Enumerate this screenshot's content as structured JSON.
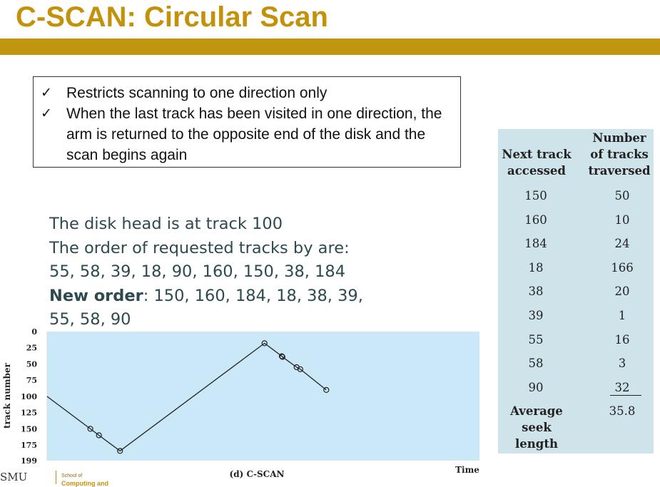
{
  "slide": {
    "title": "C-SCAN: Circular Scan",
    "bullets": [
      {
        "icon": "checkmark-icon",
        "mark": "✓",
        "text": "Restricts scanning to one direction only"
      },
      {
        "icon": "checkmark-icon",
        "mark": "✓",
        "text": "When the last track has been visited in one direction, the arm is returned to the opposite end of the disk and the scan begins again"
      }
    ],
    "description": {
      "line1": "The disk head is at track 100",
      "line2": "The order of requested tracks by are:",
      "line3": "55, 58, 39, 18, 90, 160, 150, 38, 184",
      "new_order_label": "New order",
      "new_order_rest": ": 150, 160, 184, 18, 38, 39,",
      "line5": "55, 58, 90"
    },
    "table": {
      "header_col1": [
        "Next track",
        "accessed"
      ],
      "header_col2": [
        "Number",
        "of tracks",
        "traversed"
      ],
      "rows": [
        [
          "150",
          "50"
        ],
        [
          "160",
          "10"
        ],
        [
          "184",
          "24"
        ],
        [
          "18",
          "166"
        ],
        [
          "38",
          "20"
        ],
        [
          "39",
          "1"
        ],
        [
          "55",
          "16"
        ],
        [
          "58",
          "3"
        ],
        [
          "90",
          "32"
        ]
      ],
      "summary_label": [
        "Average",
        "seek",
        "length"
      ],
      "summary_value": "35.8"
    },
    "footer": {
      "logo": "SMU",
      "school_line1": "School of",
      "school_line2": "Computing and"
    },
    "colors": {
      "title": "#c3910a",
      "title_bar": "#c0950f",
      "table_bg": "#cfe4ea",
      "chart_bg": "#cae8f7",
      "description": "#2c4a4f"
    }
  },
  "chart_data": {
    "type": "line",
    "ylabel": "track number",
    "xlabel": "Time",
    "caption": "(d) C-SCAN",
    "y_ticks": [
      "0",
      "25",
      "50",
      "75",
      "100",
      "125",
      "150",
      "175",
      "199"
    ],
    "y_tick_values": [
      0,
      25,
      50,
      75,
      100,
      125,
      150,
      175,
      199
    ],
    "ylim": [
      0,
      199
    ],
    "y_inverted": true,
    "x": [
      0,
      1,
      2,
      3,
      4,
      5,
      6,
      7,
      8,
      9,
      10
    ],
    "tracks": [
      100,
      150,
      160,
      184,
      18,
      38,
      39,
      55,
      58,
      90
    ],
    "path_x": [
      0,
      3.5,
      4.2,
      5.9,
      17.6,
      19.0,
      19.05,
      20.2,
      20.5,
      22.6
    ],
    "x_max": 35,
    "marked_points": [
      1,
      2,
      3,
      4,
      5,
      6,
      7,
      8,
      9
    ],
    "grid": false
  }
}
